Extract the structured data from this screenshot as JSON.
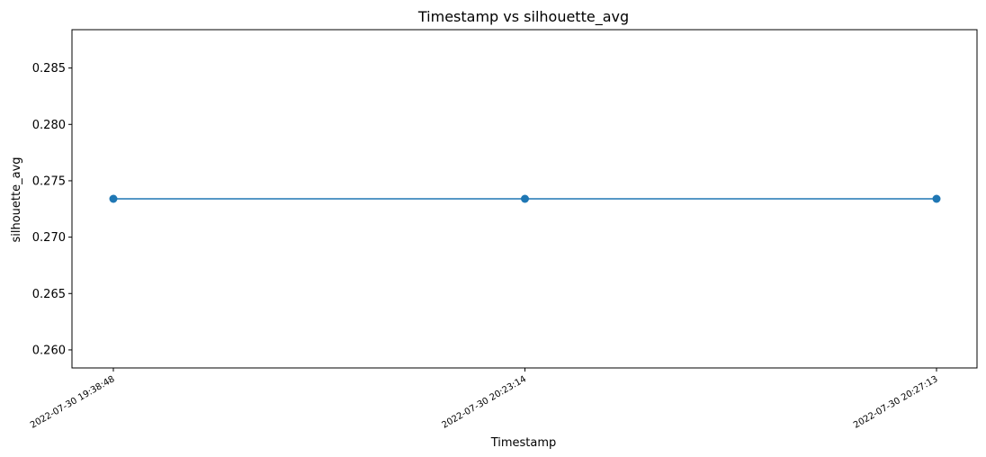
{
  "chart_data": {
    "type": "line",
    "title": "Timestamp vs silhouette_avg",
    "xlabel": "Timestamp",
    "ylabel": "silhouette_avg",
    "x": [
      "2022-07-30 19:38:48",
      "2022-07-30 20:23:14",
      "2022-07-30 20:27:13"
    ],
    "series": [
      {
        "values": [
          0.2734,
          0.2734,
          0.2734
        ]
      }
    ],
    "yticks": [
      0.26,
      0.265,
      0.27,
      0.275,
      0.28,
      0.285
    ],
    "ytick_labels": [
      "0.260",
      "0.265",
      "0.270",
      "0.275",
      "0.280",
      "0.285"
    ],
    "ylim": [
      0.2584,
      0.2884
    ],
    "grid": false,
    "markers": true,
    "colors": {
      "line": "#1f77b4",
      "marker": "#1f77b4",
      "axes": "#000000"
    }
  }
}
